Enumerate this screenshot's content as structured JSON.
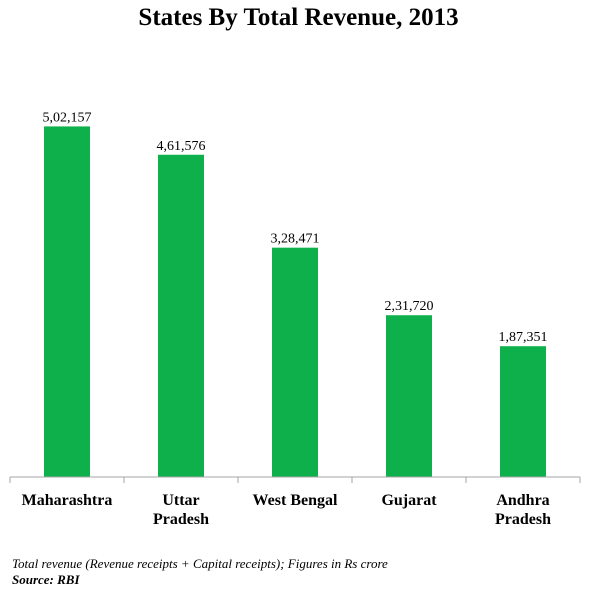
{
  "chart_data": {
    "type": "bar",
    "title": "States By Total Revenue, 2013",
    "categories": [
      [
        "Maharashtra"
      ],
      [
        "Uttar",
        "Pradesh"
      ],
      [
        "West Bengal"
      ],
      [
        "Gujarat"
      ],
      [
        "Andhra",
        "Pradesh"
      ]
    ],
    "values": [
      502157,
      461576,
      328471,
      231720,
      187351
    ],
    "value_labels": [
      "5,02,157",
      "4,61,576",
      "3,28,471",
      "2,31,720",
      "1,87,351"
    ],
    "xlabel": "",
    "ylabel": "",
    "ylim": [
      0,
      540000
    ],
    "grid": false,
    "legend": "none",
    "bar_color": "#0DB04B",
    "axis_color": "#A6A6A6"
  },
  "footnote": {
    "note": "Total revenue (Revenue receipts + Capital receipts); Figures in Rs crore",
    "source": "Source: RBI"
  }
}
